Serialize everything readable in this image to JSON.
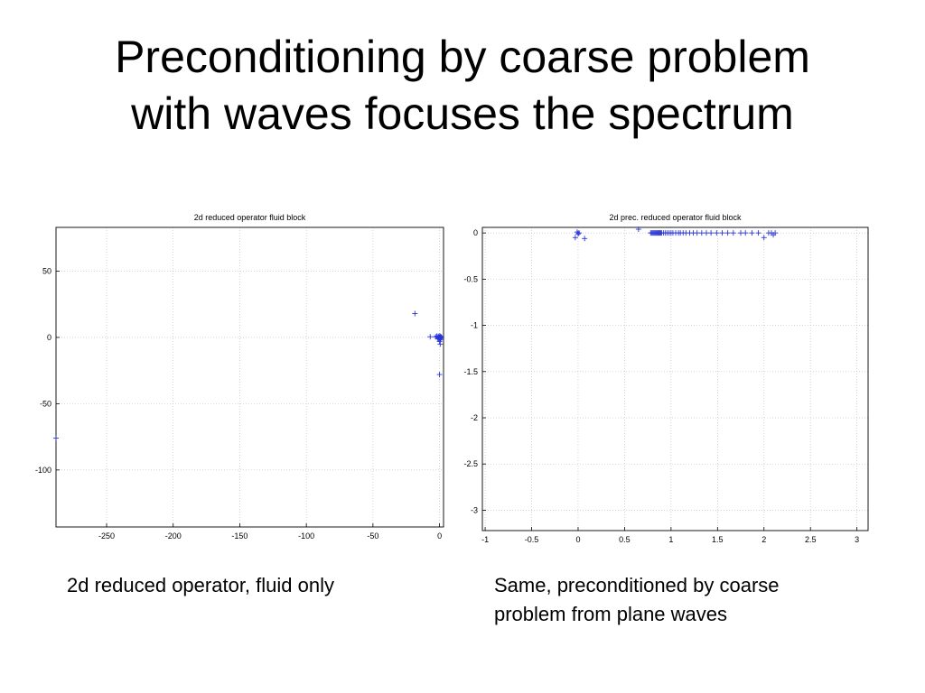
{
  "slide": {
    "title_line1": "Preconditioning by coarse problem",
    "title_line2": "with waves focuses the spectrum",
    "caption_left": "2d reduced operator, fluid only",
    "caption_right_line1": "Same, preconditioned by coarse",
    "caption_right_line2": "problem from plane waves"
  },
  "chart_data": [
    {
      "type": "scatter",
      "title": "2d reduced operator fluid block",
      "xlabel": "",
      "ylabel": "",
      "xlim": [
        -288,
        3
      ],
      "ylim": [
        -143,
        83
      ],
      "xticks": [
        -250,
        -200,
        -150,
        -100,
        -50,
        0
      ],
      "yticks": [
        50,
        0,
        -50,
        -100
      ],
      "grid": true,
      "marker": "+",
      "color": "#2a35d6",
      "series": [
        {
          "points": [
            [
              -18.5,
              18
            ],
            [
              -7,
              0.5
            ],
            [
              -3,
              0.5
            ],
            [
              -2,
              1
            ],
            [
              -1.5,
              -0.5
            ],
            [
              -1,
              0.8
            ],
            [
              -0.8,
              -1.2
            ],
            [
              -0.5,
              0.3
            ],
            [
              -0.3,
              -0.4
            ],
            [
              0,
              0
            ],
            [
              0.2,
              1.2
            ],
            [
              0.4,
              -0.8
            ],
            [
              0.6,
              0.4
            ],
            [
              0.8,
              -1.5
            ],
            [
              1,
              0.6
            ],
            [
              1.2,
              -0.2
            ],
            [
              1.5,
              0
            ],
            [
              0,
              -3
            ],
            [
              0.5,
              -5
            ],
            [
              0,
              -28
            ],
            [
              -288,
              -76
            ]
          ]
        }
      ]
    },
    {
      "type": "scatter",
      "title": "2d prec. reduced operator fluid block",
      "xlabel": "",
      "ylabel": "",
      "xlim": [
        -1.03,
        3.12
      ],
      "ylim": [
        -3.22,
        0.06
      ],
      "xticks": [
        -1,
        -0.5,
        0,
        0.5,
        1,
        1.5,
        2,
        2.5,
        3
      ],
      "yticks": [
        0,
        -0.5,
        -1,
        -1.5,
        -2,
        -2.5,
        -3
      ],
      "grid": true,
      "marker": "+",
      "color": "#2a35d6",
      "series": [
        {
          "points": [
            [
              -0.01,
              0.01
            ],
            [
              0.0,
              -0.01
            ],
            [
              0.01,
              0.0
            ],
            [
              -0.03,
              -0.05
            ],
            [
              0.07,
              -0.06
            ],
            [
              0.65,
              0.04
            ],
            [
              0.78,
              0.0
            ],
            [
              0.79,
              0.0
            ],
            [
              0.8,
              0.0
            ],
            [
              0.81,
              0.0
            ],
            [
              0.82,
              0.0
            ],
            [
              0.83,
              0.0
            ],
            [
              0.84,
              0.0
            ],
            [
              0.85,
              0.0
            ],
            [
              0.86,
              0.0
            ],
            [
              0.87,
              0.0
            ],
            [
              0.88,
              0.0
            ],
            [
              0.89,
              0.0
            ],
            [
              0.9,
              0.0
            ],
            [
              0.92,
              0.0
            ],
            [
              0.94,
              0.0
            ],
            [
              0.96,
              0.0
            ],
            [
              0.98,
              0.0
            ],
            [
              1.0,
              0.0
            ],
            [
              1.02,
              0.0
            ],
            [
              1.05,
              0.0
            ],
            [
              1.08,
              0.0
            ],
            [
              1.1,
              0.0
            ],
            [
              1.13,
              0.0
            ],
            [
              1.16,
              0.0
            ],
            [
              1.2,
              0.0
            ],
            [
              1.24,
              0.0
            ],
            [
              1.28,
              0.0
            ],
            [
              1.33,
              0.0
            ],
            [
              1.38,
              0.0
            ],
            [
              1.43,
              0.0
            ],
            [
              1.49,
              0.0
            ],
            [
              1.55,
              0.0
            ],
            [
              1.61,
              0.0
            ],
            [
              1.67,
              0.0
            ],
            [
              1.75,
              0.0
            ],
            [
              1.8,
              0.0
            ],
            [
              1.87,
              0.0
            ],
            [
              1.94,
              0.0
            ],
            [
              2.0,
              -0.05
            ],
            [
              2.05,
              0.0
            ],
            [
              2.08,
              0.0
            ],
            [
              2.1,
              -0.02
            ],
            [
              2.12,
              0.0
            ]
          ]
        }
      ]
    }
  ]
}
